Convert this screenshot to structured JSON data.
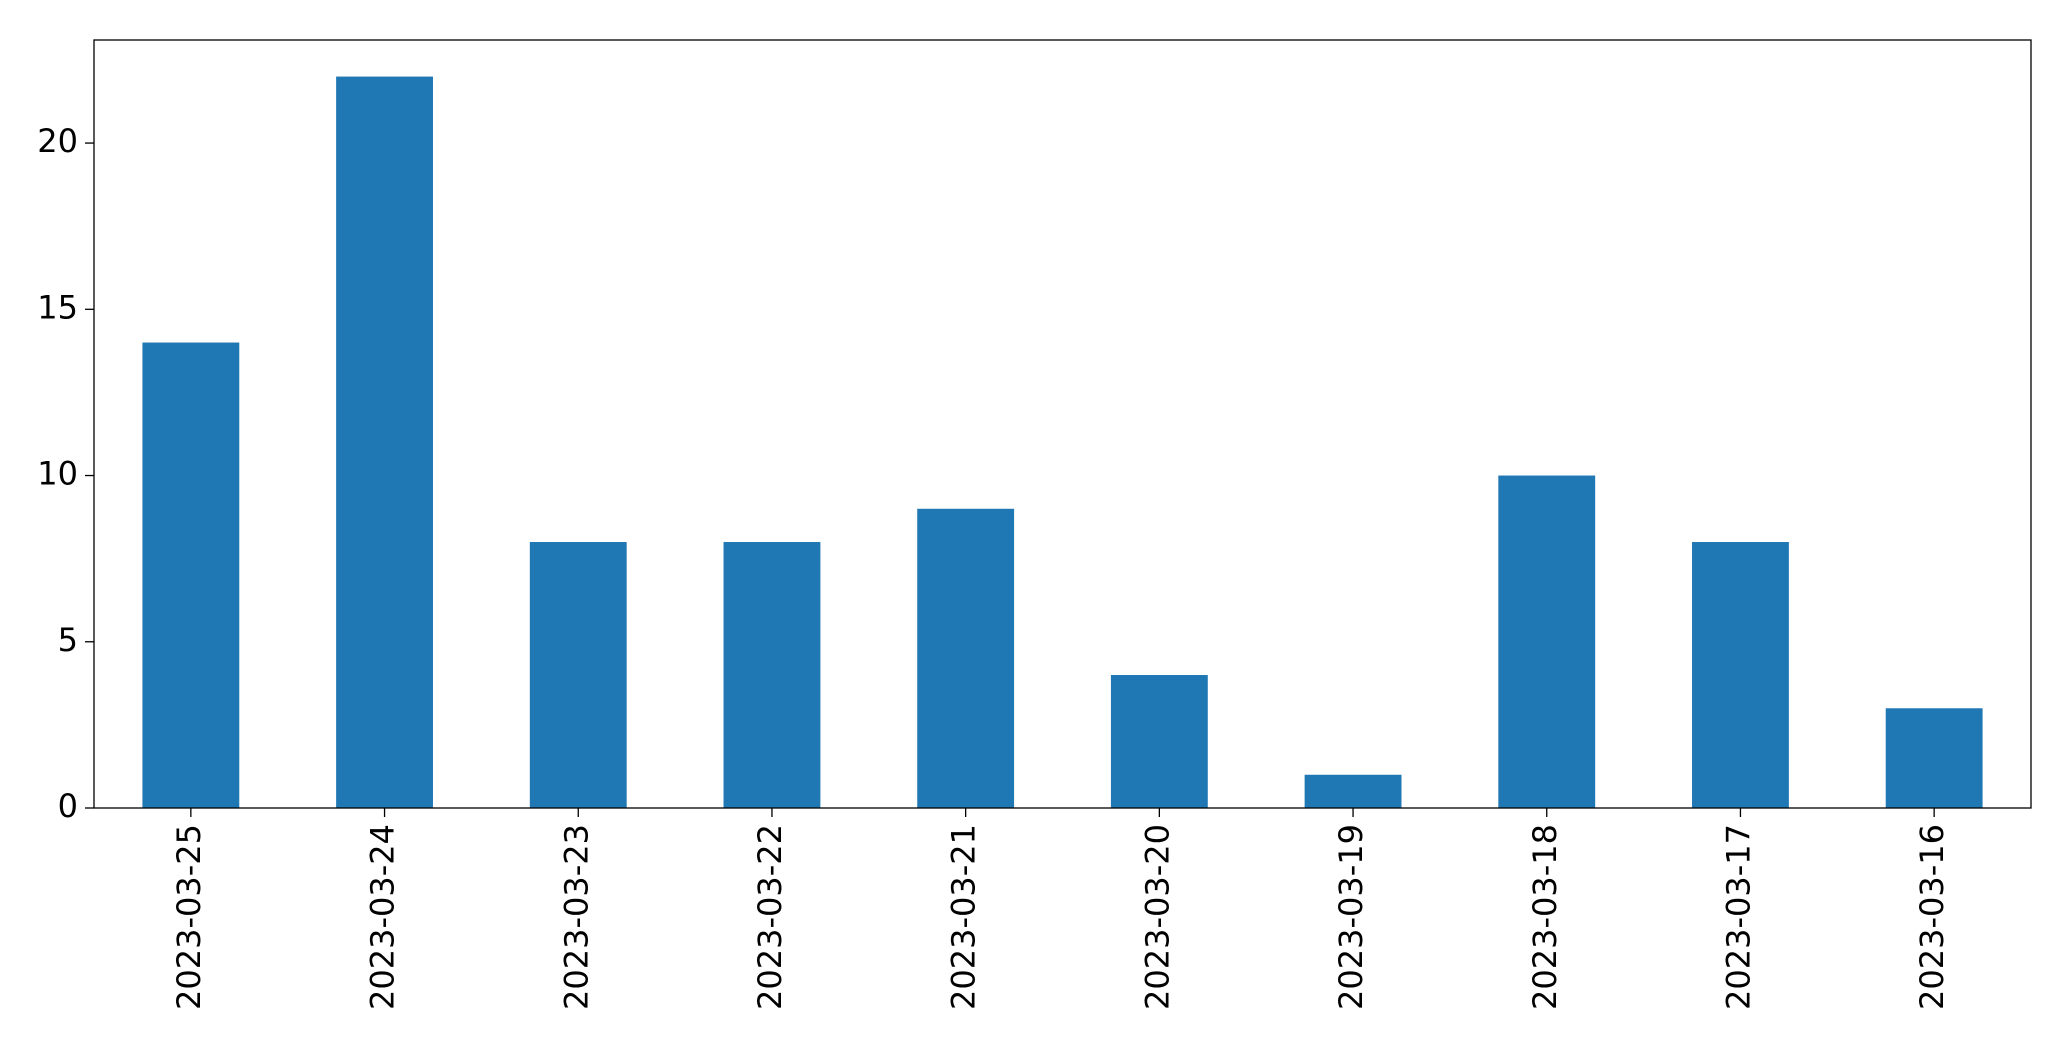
{
  "chart_data": {
    "type": "bar",
    "categories": [
      "2023-03-25",
      "2023-03-24",
      "2023-03-23",
      "2023-03-22",
      "2023-03-21",
      "2023-03-20",
      "2023-03-19",
      "2023-03-18",
      "2023-03-17",
      "2023-03-16"
    ],
    "values": [
      14,
      22,
      8,
      8,
      9,
      4,
      1,
      10,
      8,
      3
    ],
    "color": "#1f77b4",
    "ylim": [
      0,
      23.1
    ],
    "yticks": [
      0,
      5,
      10,
      15,
      20
    ],
    "grid": false
  }
}
